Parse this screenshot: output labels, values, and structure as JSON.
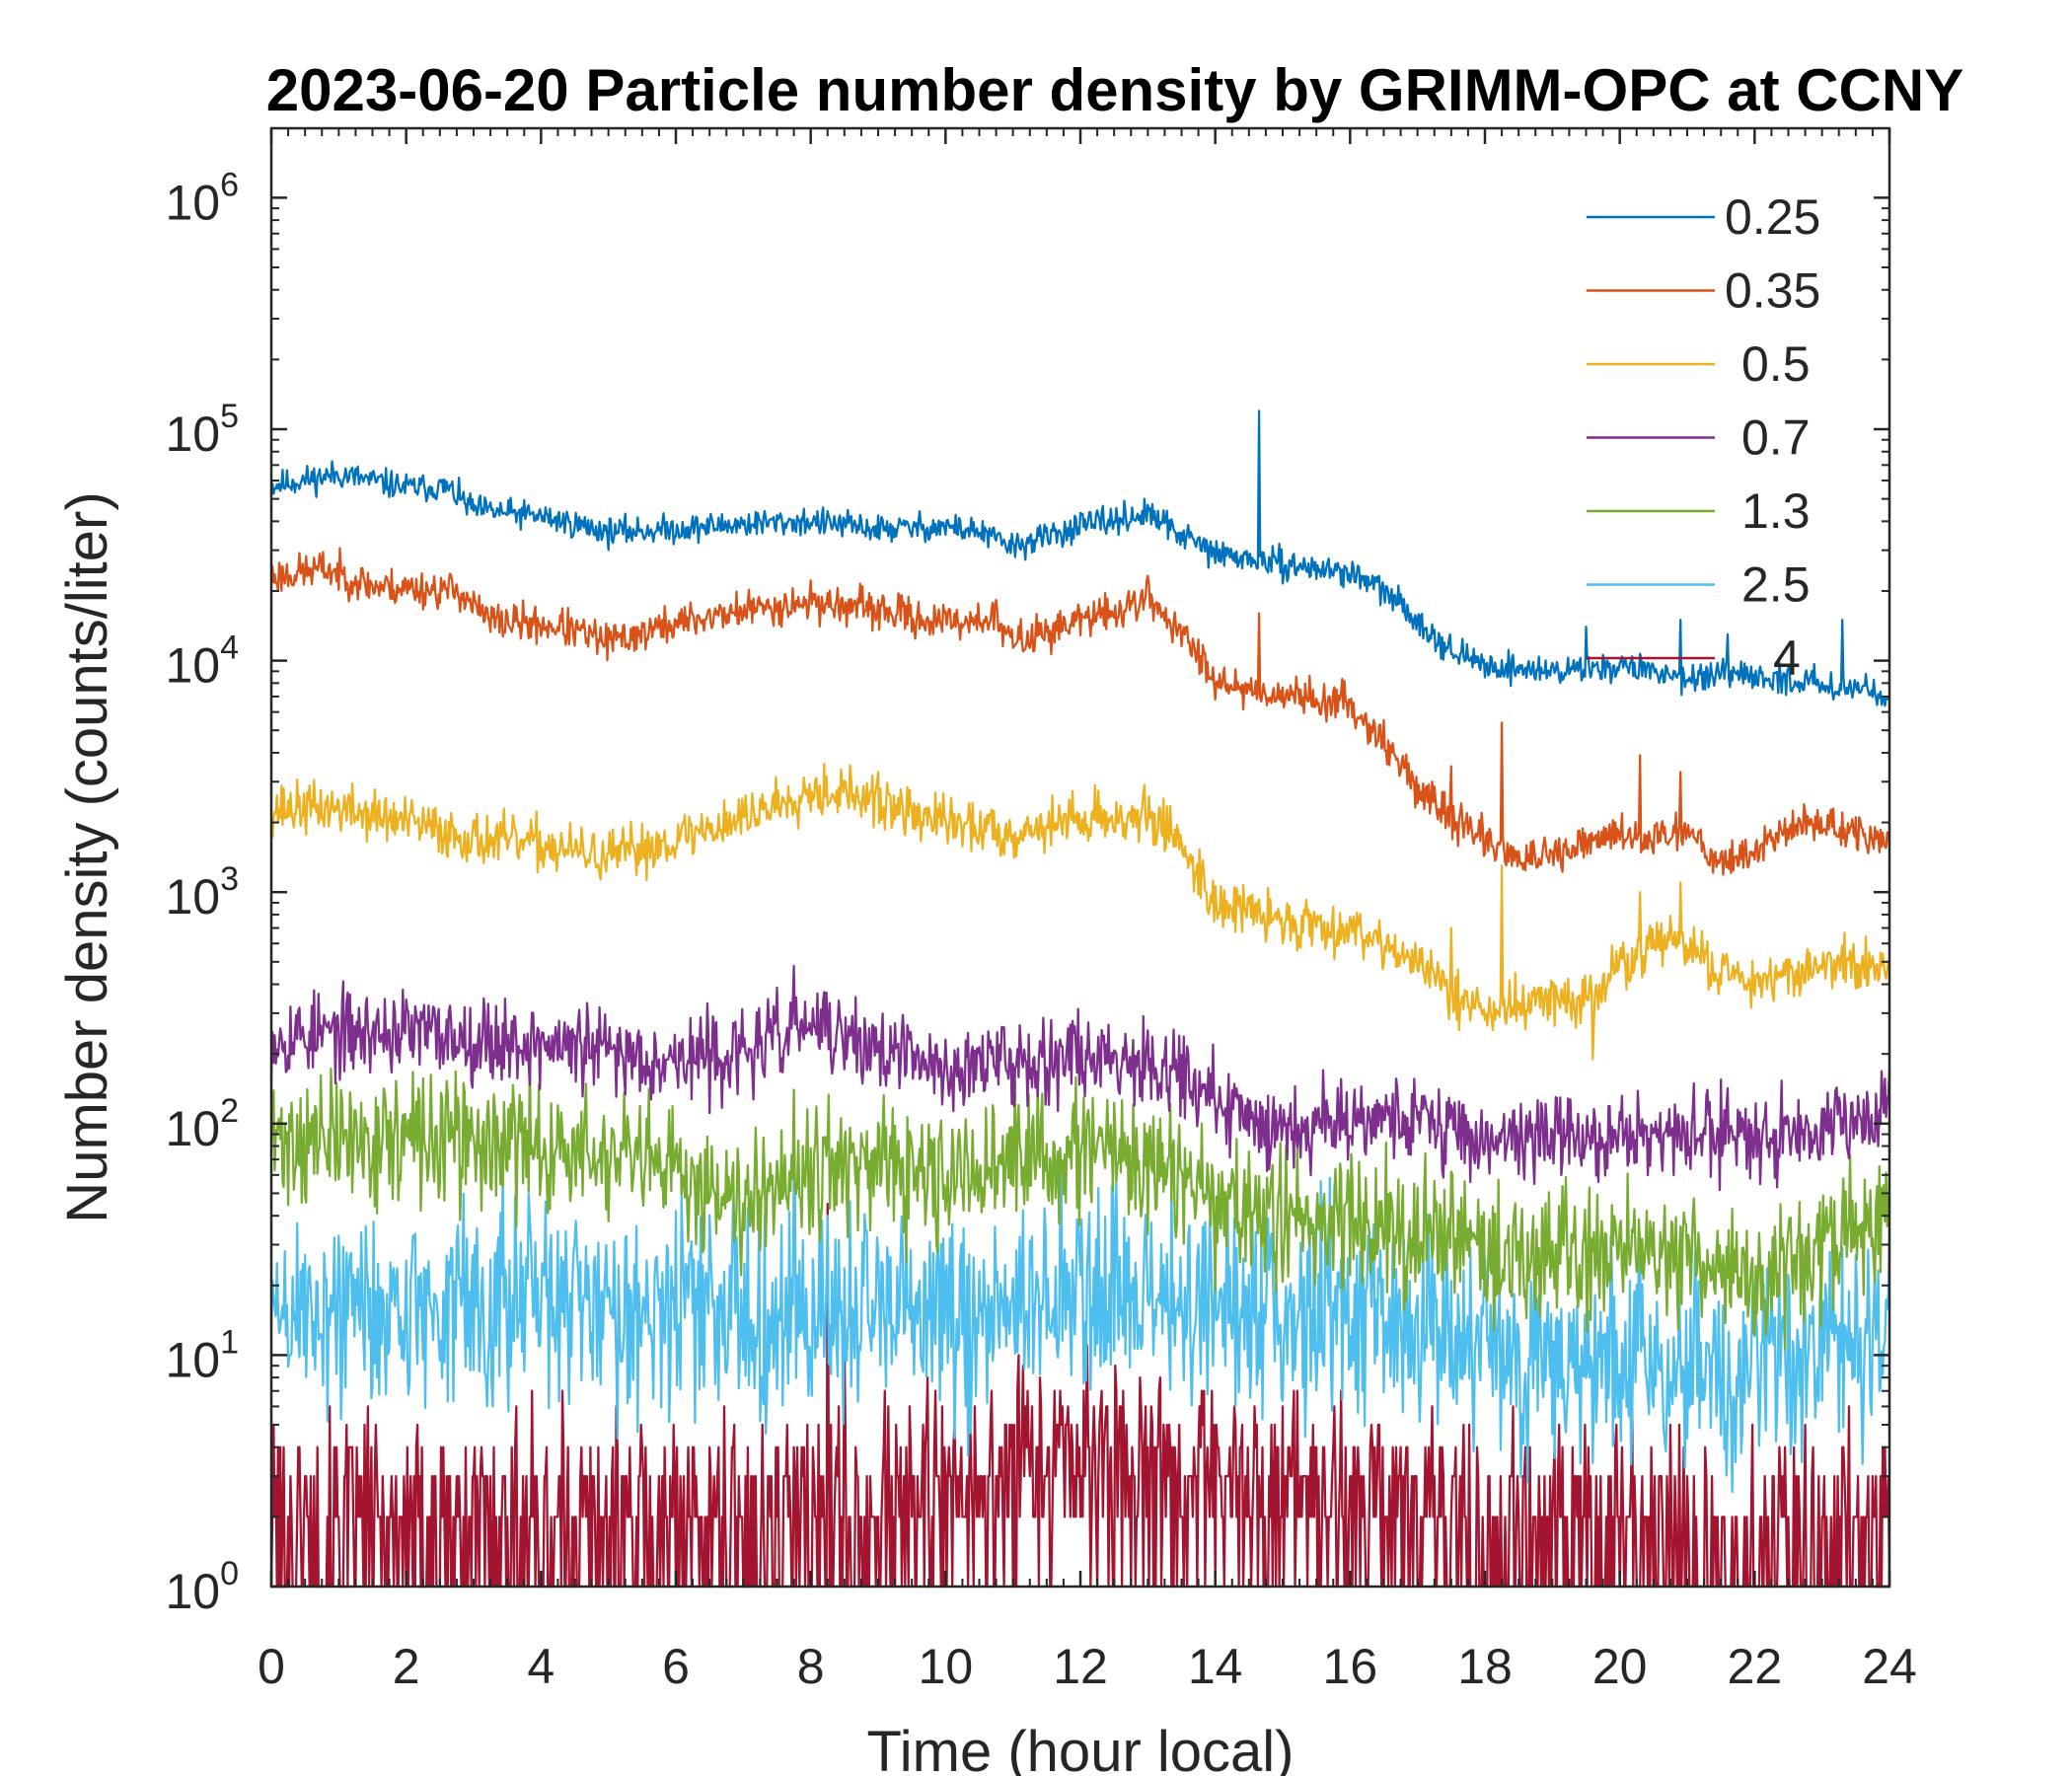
{
  "chart_data": {
    "type": "line",
    "title": "2023-06-20 Particle number density by GRIMM-OPC at CCNY",
    "xlabel": "Time (hour local)",
    "ylabel": "Number density (counts/liter)",
    "xlim": [
      0,
      24
    ],
    "ylim_log10": [
      0,
      6.3
    ],
    "yscale": "log",
    "xticks": [
      "0",
      "2",
      "4",
      "6",
      "8",
      "10",
      "12",
      "14",
      "16",
      "18",
      "20",
      "22",
      "24"
    ],
    "yticks": [
      {
        "base": "10",
        "exp": "0"
      },
      {
        "base": "10",
        "exp": "1"
      },
      {
        "base": "10",
        "exp": "2"
      },
      {
        "base": "10",
        "exp": "3"
      },
      {
        "base": "10",
        "exp": "4"
      },
      {
        "base": "10",
        "exp": "5"
      },
      {
        "base": "10",
        "exp": "6"
      }
    ],
    "legend_position": "top-right",
    "series": [
      {
        "name": "0.25",
        "color": "#0072BD",
        "noise": 0.03,
        "seed": 11,
        "points": [
          [
            0,
            57000
          ],
          [
            1,
            64000
          ],
          [
            2,
            56000
          ],
          [
            2.6,
            56000
          ],
          [
            3,
            45000
          ],
          [
            4,
            42000
          ],
          [
            5,
            36000
          ],
          [
            6,
            37000
          ],
          [
            7,
            39000
          ],
          [
            8,
            40000
          ],
          [
            9,
            37000
          ],
          [
            10,
            38000
          ],
          [
            10.5,
            36000
          ],
          [
            11,
            31000
          ],
          [
            12,
            38000
          ],
          [
            13,
            43000
          ],
          [
            13.5,
            35000
          ],
          [
            14,
            29000
          ],
          [
            15,
            26000
          ],
          [
            16,
            24000
          ],
          [
            16.5,
            20000
          ],
          [
            17,
            15000
          ],
          [
            17.5,
            11000
          ],
          [
            18,
            9500
          ],
          [
            19,
            9000
          ],
          [
            20,
            9500
          ],
          [
            21,
            8500
          ],
          [
            22,
            8500
          ],
          [
            23,
            8000
          ],
          [
            24,
            7200
          ]
        ],
        "spikes": [
          [
            14.65,
            120000
          ],
          [
            19.5,
            14000
          ],
          [
            20.9,
            15000
          ],
          [
            21.6,
            13000
          ],
          [
            23.3,
            15000
          ]
        ]
      },
      {
        "name": "0.35",
        "color": "#D95319",
        "noise": 0.04,
        "seed": 23,
        "points": [
          [
            0,
            23000
          ],
          [
            0.8,
            25000
          ],
          [
            1.5,
            21000
          ],
          [
            2.8,
            20000
          ],
          [
            3.2,
            15000
          ],
          [
            4.3,
            14000
          ],
          [
            5,
            12000
          ],
          [
            6,
            14500
          ],
          [
            7,
            16500
          ],
          [
            8,
            18000
          ],
          [
            9,
            16500
          ],
          [
            10,
            14500
          ],
          [
            10.7,
            15500
          ],
          [
            11,
            12000
          ],
          [
            12,
            15000
          ],
          [
            12.6,
            16500
          ],
          [
            13,
            19000
          ],
          [
            13.5,
            13000
          ],
          [
            14,
            8500
          ],
          [
            14.5,
            7500
          ],
          [
            15,
            7200
          ],
          [
            16,
            6500
          ],
          [
            16.5,
            4500
          ],
          [
            17,
            2800
          ],
          [
            17.5,
            2100
          ],
          [
            18,
            1700
          ],
          [
            18.5,
            1400
          ],
          [
            19,
            1400
          ],
          [
            19.5,
            1600
          ],
          [
            20,
            1800
          ],
          [
            20.5,
            1700
          ],
          [
            21,
            1900
          ],
          [
            21.5,
            1350
          ],
          [
            22,
            1500
          ],
          [
            22.5,
            1900
          ],
          [
            23,
            2000
          ],
          [
            24,
            1600
          ]
        ],
        "spikes": [
          [
            14.65,
            16000
          ],
          [
            17.5,
            3500
          ],
          [
            18.25,
            5400
          ],
          [
            20.3,
            3900
          ],
          [
            20.9,
            3300
          ]
        ]
      },
      {
        "name": "0.5",
        "color": "#EDB120",
        "noise": 0.055,
        "seed": 37,
        "points": [
          [
            0,
            2300
          ],
          [
            1,
            2300
          ],
          [
            2,
            2000
          ],
          [
            3,
            1700
          ],
          [
            4,
            1600
          ],
          [
            5,
            1400
          ],
          [
            6,
            1700
          ],
          [
            7,
            2100
          ],
          [
            8,
            2800
          ],
          [
            8.5,
            2700
          ],
          [
            9,
            2400
          ],
          [
            10,
            2000
          ],
          [
            11,
            1800
          ],
          [
            12,
            2100
          ],
          [
            13,
            2100
          ],
          [
            13.4,
            1800
          ],
          [
            14,
            900
          ],
          [
            15,
            750
          ],
          [
            16,
            700
          ],
          [
            16.5,
            620
          ],
          [
            17,
            480
          ],
          [
            17.5,
            380
          ],
          [
            18,
            300
          ],
          [
            19,
            350
          ],
          [
            19.5,
            330
          ],
          [
            20,
            480
          ],
          [
            20.5,
            600
          ],
          [
            21,
            600
          ],
          [
            21.5,
            450
          ],
          [
            22,
            420
          ],
          [
            23,
            480
          ],
          [
            24,
            480
          ]
        ],
        "spikes": [
          [
            9,
            3300
          ],
          [
            17.5,
            700
          ],
          [
            18.25,
            1300
          ],
          [
            20.3,
            1000
          ],
          [
            20.9,
            1100
          ],
          [
            19.6,
            190
          ]
        ]
      },
      {
        "name": "0.7",
        "color": "#7E2F8E",
        "noise": 0.09,
        "seed": 53,
        "points": [
          [
            0,
            240
          ],
          [
            2,
            250
          ],
          [
            4,
            220
          ],
          [
            6,
            190
          ],
          [
            7,
            200
          ],
          [
            8,
            270
          ],
          [
            8.5,
            230
          ],
          [
            9,
            210
          ],
          [
            10,
            170
          ],
          [
            11,
            190
          ],
          [
            12,
            200
          ],
          [
            13,
            190
          ],
          [
            13.5,
            170
          ],
          [
            14,
            120
          ],
          [
            15,
            95
          ],
          [
            16,
            110
          ],
          [
            17,
            105
          ],
          [
            18,
            85
          ],
          [
            19,
            90
          ],
          [
            20,
            85
          ],
          [
            21,
            90
          ],
          [
            22,
            90
          ],
          [
            23,
            100
          ],
          [
            24,
            120
          ]
        ],
        "spikes": [
          [
            7.75,
            480
          ],
          [
            8.2,
            370
          ],
          [
            15.6,
            170
          ]
        ]
      },
      {
        "name": "1.3",
        "color": "#77AC30",
        "noise": 0.14,
        "seed": 71,
        "points": [
          [
            0,
            85
          ],
          [
            2,
            85
          ],
          [
            4,
            80
          ],
          [
            6,
            60
          ],
          [
            7,
            50
          ],
          [
            8,
            70
          ],
          [
            9,
            60
          ],
          [
            10,
            55
          ],
          [
            11,
            70
          ],
          [
            12,
            75
          ],
          [
            13,
            70
          ],
          [
            14,
            45
          ],
          [
            15,
            38
          ],
          [
            16,
            40
          ],
          [
            17,
            35
          ],
          [
            18,
            28
          ],
          [
            19,
            28
          ],
          [
            20,
            30
          ],
          [
            21,
            28
          ],
          [
            22,
            22
          ],
          [
            23,
            28
          ],
          [
            24,
            45
          ]
        ],
        "spikes": [
          [
            7.75,
            140
          ]
        ]
      },
      {
        "name": "2.5",
        "color": "#4DBEEE",
        "noise": 0.22,
        "seed": 89,
        "points": [
          [
            0,
            15
          ],
          [
            2,
            16
          ],
          [
            4,
            17
          ],
          [
            6,
            16
          ],
          [
            8,
            15
          ],
          [
            10,
            14
          ],
          [
            12,
            18
          ],
          [
            14,
            16
          ],
          [
            16,
            16
          ],
          [
            18,
            11
          ],
          [
            20,
            9
          ],
          [
            22,
            9
          ],
          [
            24,
            13
          ]
        ],
        "spikes": [
          [
            7.75,
            60
          ],
          [
            8.25,
            40
          ]
        ]
      },
      {
        "name": "4",
        "color": "#A2142F",
        "noise": 0.5,
        "seed": 101,
        "points": [
          [
            0,
            2
          ],
          [
            4,
            2
          ],
          [
            6,
            2
          ],
          [
            8,
            2.2
          ],
          [
            10,
            2.5
          ],
          [
            11,
            3.5
          ],
          [
            12,
            4
          ],
          [
            13,
            4
          ],
          [
            14,
            3
          ],
          [
            16,
            2.5
          ],
          [
            18,
            2
          ],
          [
            20,
            1.8
          ],
          [
            22,
            1.5
          ],
          [
            24,
            2
          ]
        ],
        "spikes": [
          [
            8.25,
            45
          ],
          [
            8.5,
            12
          ]
        ],
        "discrete": true
      }
    ]
  }
}
